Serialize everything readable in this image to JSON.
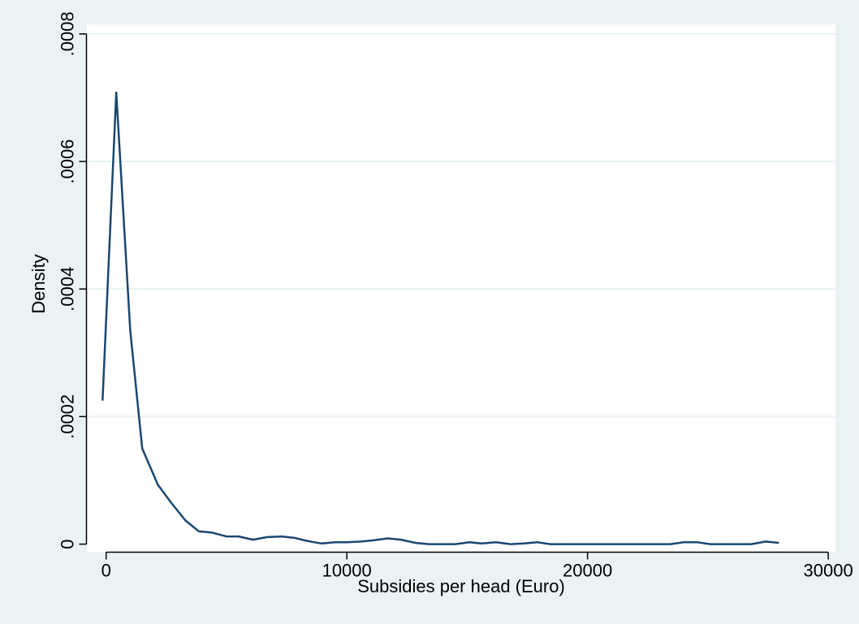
{
  "chart_data": {
    "type": "line",
    "title": "",
    "xlabel": "Subsidies per head (Euro)",
    "ylabel": "Density",
    "xlim": [
      -800,
      30300
    ],
    "ylim": [
      -1.2e-05,
      0.000815
    ],
    "x_ticks": [
      0,
      10000,
      20000,
      30000
    ],
    "x_tick_labels": [
      "0",
      "10000",
      "20000",
      "30000"
    ],
    "y_ticks": [
      0,
      0.0002,
      0.0004,
      0.0006,
      0.0008
    ],
    "y_tick_labels": [
      "0",
      ".0002",
      ".0004",
      ".0006",
      ".0008"
    ],
    "grid": true,
    "legend": "none",
    "colors": {
      "background": "#eaf2f3",
      "plot_background": "#ffffff",
      "line": "#1a476f",
      "grid": "#eaf2f3"
    },
    "series": [
      {
        "x": [
          -150,
          420,
          1000,
          1500,
          2150,
          2700,
          3300,
          3850,
          4400,
          5000,
          5500,
          6100,
          6700,
          7300,
          7800,
          8350,
          8950,
          9500,
          10000,
          10600,
          11100,
          11700,
          12250,
          12850,
          13400,
          14000,
          14500,
          15100,
          15600,
          16200,
          16800,
          17350,
          17900,
          18450,
          19000,
          19600,
          20100,
          20700,
          21250,
          21800,
          22300,
          22900,
          23450,
          24000,
          24550,
          25100,
          25700,
          26250,
          26800,
          27400,
          27950
        ],
        "values": [
          0.000225,
          0.000708,
          0.000335,
          0.00015,
          9.3e-05,
          6.5e-05,
          3.7e-05,
          2e-05,
          1.8e-05,
          1.2e-05,
          1.2e-05,
          7e-06,
          1.1e-05,
          1.2e-05,
          1e-05,
          5e-06,
          1e-06,
          3e-06,
          3e-06,
          4e-06,
          6e-06,
          9e-06,
          7e-06,
          2e-06,
          0.0,
          0.0,
          0.0,
          3e-06,
          1e-06,
          3e-06,
          0.0,
          1e-06,
          3e-06,
          0.0,
          0.0,
          0.0,
          0.0,
          0.0,
          0.0,
          0.0,
          0.0,
          0.0,
          0.0,
          3e-06,
          3e-06,
          0.0,
          0.0,
          0.0,
          0.0,
          4e-06,
          2e-06
        ]
      }
    ]
  }
}
